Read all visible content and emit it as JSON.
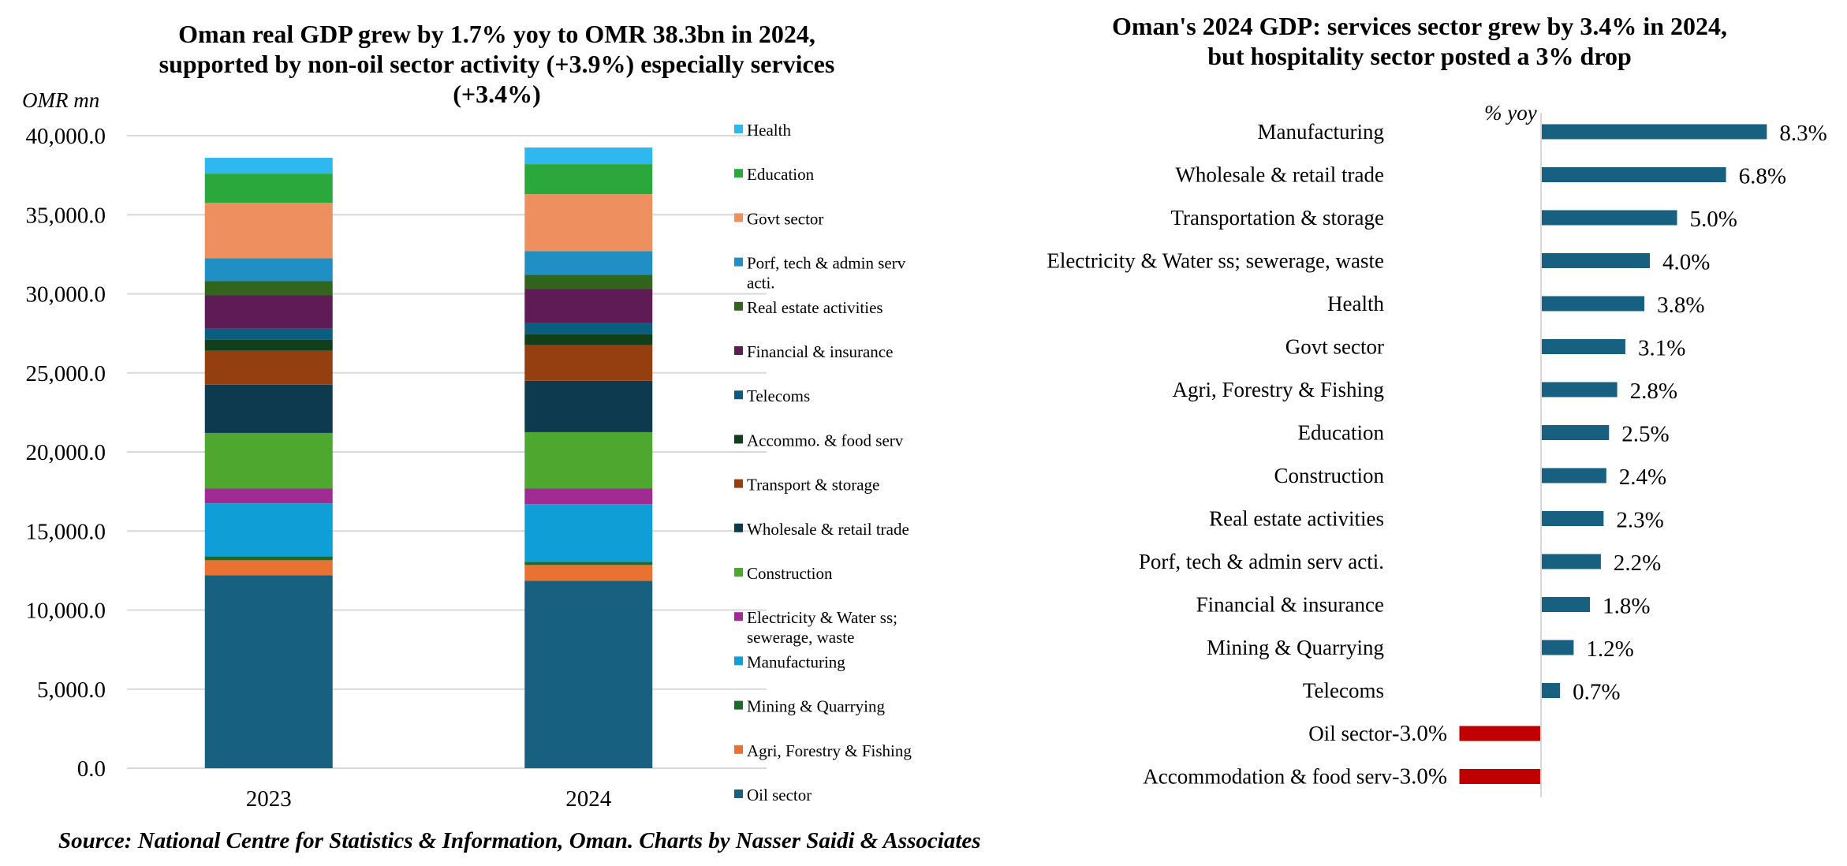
{
  "chart_data": [
    {
      "type": "bar",
      "stacked": true,
      "title": "Oman real GDP grew by 1.7% yoy to OMR 38.3bn in 2024, supported by non-oil sector activity (+3.9%) especially services (+3.4%)",
      "title_lines": [
        "Oman real GDP grew by 1.7% yoy to OMR 38.3bn in 2024,",
        "supported by non-oil sector activity (+3.9%) especially services",
        "(+3.4%)"
      ],
      "ylabel": "OMR mn",
      "xlabel": "",
      "ylim": [
        0,
        40000
      ],
      "yticks": [
        0,
        5000,
        10000,
        15000,
        20000,
        25000,
        30000,
        35000,
        40000
      ],
      "ytick_labels": [
        "0.0",
        "5,000.0",
        "10,000.0",
        "15,000.0",
        "20,000.0",
        "25,000.0",
        "30,000.0",
        "35,000.0",
        "40,000.0"
      ],
      "grid": true,
      "legend_position": "right",
      "categories": [
        "2023",
        "2024"
      ],
      "series": [
        {
          "name": "Oil sector",
          "color": "#17607f",
          "values": [
            12200,
            11850
          ]
        },
        {
          "name": "Agri, Forestry & Fishing",
          "color": "#e97132",
          "values": [
            950,
            1000
          ]
        },
        {
          "name": "Mining & Quarrying",
          "color": "#1c6b2a",
          "values": [
            250,
            200
          ]
        },
        {
          "name": "Manufacturing",
          "color": "#109ed7",
          "values": [
            3350,
            3650
          ]
        },
        {
          "name": "Electricity & Water ss; sewerage, waste",
          "color": "#a02b93",
          "values": [
            950,
            1000
          ]
        },
        {
          "name": "Construction",
          "color": "#4ea72e",
          "values": [
            3500,
            3550
          ]
        },
        {
          "name": "Wholesale & retail trade",
          "color": "#0e3a50",
          "values": [
            3050,
            3250
          ]
        },
        {
          "name": "Transport & storage",
          "color": "#953f10",
          "values": [
            2150,
            2250
          ]
        },
        {
          "name": "Accommo. & food serv",
          "color": "#113f19",
          "values": [
            700,
            700
          ]
        },
        {
          "name": "Telecoms",
          "color": "#0a5d7e",
          "values": [
            700,
            700
          ]
        },
        {
          "name": "Financial & insurance",
          "color": "#5f1b56",
          "values": [
            2100,
            2150
          ]
        },
        {
          "name": "Real estate activities",
          "color": "#31651e",
          "values": [
            900,
            900
          ]
        },
        {
          "name": "Porf, tech & admin serv acti.",
          "color": "#2090c4",
          "values": [
            1450,
            1500
          ]
        },
        {
          "name": "Govt sector",
          "color": "#ed8f5e",
          "values": [
            3500,
            3600
          ]
        },
        {
          "name": "Education",
          "color": "#2aa83b",
          "values": [
            1850,
            1900
          ]
        },
        {
          "name": "Health",
          "color": "#2fb8ef",
          "values": [
            1000,
            1050
          ]
        }
      ]
    },
    {
      "type": "bar",
      "orientation": "horizontal",
      "title": "Oman's 2024 GDP: services sector grew by 3.4% in 2024, but hospitality sector posted a 3% drop",
      "title_lines": [
        "Oman's 2024 GDP: services sector grew by 3.4% in 2024,",
        "but hospitality sector posted a 3% drop"
      ],
      "xlabel": "% yoy",
      "ylabel": "",
      "xlim": [
        -3.0,
        8.3
      ],
      "grid": false,
      "positive_color": "#17607f",
      "negative_color": "#c00000",
      "categories": [
        "Manufacturing",
        "Wholesale & retail trade",
        "Transportation & storage",
        "Electricity & Water ss; sewerage, waste",
        "Health",
        "Govt sector",
        "Agri, Forestry & Fishing",
        "Education",
        "Construction",
        "Real estate activities",
        "Porf, tech & admin serv acti.",
        "Financial & insurance",
        "Mining & Quarrying",
        "Telecoms",
        "Oil sector",
        "Accommodation & food serv"
      ],
      "values": [
        8.3,
        6.8,
        5.0,
        4.0,
        3.8,
        3.1,
        2.8,
        2.5,
        2.4,
        2.3,
        2.2,
        1.8,
        1.2,
        0.7,
        -3.0,
        -3.0
      ],
      "value_labels": [
        "8.3%",
        "6.8%",
        "5.0%",
        "4.0%",
        "3.8%",
        "3.1%",
        "2.8%",
        "2.5%",
        "2.4%",
        "2.3%",
        "2.2%",
        "1.8%",
        "1.2%",
        "0.7%",
        "-3.0%",
        "-3.0%"
      ]
    }
  ],
  "footer": {
    "source": "Source: National Centre for Statistics & Information, Oman. Charts by Nasser Saidi & Associates"
  }
}
